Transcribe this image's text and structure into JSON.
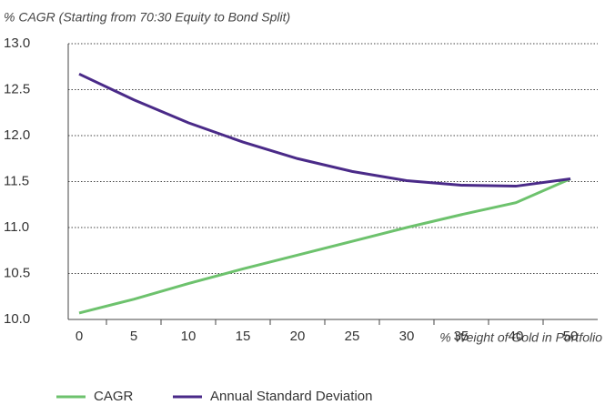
{
  "chart_data": {
    "type": "line",
    "title": "% CAGR (Starting from 70:30 Equity to Bond Split)",
    "x_label": "% Weight of Gold in Portfolio",
    "categories": [
      "0",
      "5",
      "10",
      "15",
      "20",
      "25",
      "30",
      "35",
      "40",
      "50"
    ],
    "series": [
      {
        "name": "CAGR",
        "color": "#6dc26d",
        "values": [
          10.07,
          10.22,
          10.39,
          10.55,
          10.7,
          10.85,
          11.0,
          11.14,
          11.27,
          11.53
        ]
      },
      {
        "name": "Annual Standard Deviation",
        "color": "#4a2a88",
        "values": [
          12.67,
          12.39,
          12.14,
          11.93,
          11.75,
          11.61,
          11.51,
          11.46,
          11.45,
          11.53
        ]
      }
    ],
    "ylim": [
      10.0,
      13.0
    ],
    "yticks": [
      {
        "value": 10,
        "label": "10.0"
      },
      {
        "value": 10.5,
        "label": "10.5"
      },
      {
        "value": 11,
        "label": "11.0"
      },
      {
        "value": 11.5,
        "label": "11.5"
      },
      {
        "value": 12,
        "label": "12.0"
      },
      {
        "value": 12.5,
        "label": "12.5"
      },
      {
        "value": 13,
        "label": "13.0"
      }
    ],
    "grid": true,
    "legend": "bottom"
  }
}
